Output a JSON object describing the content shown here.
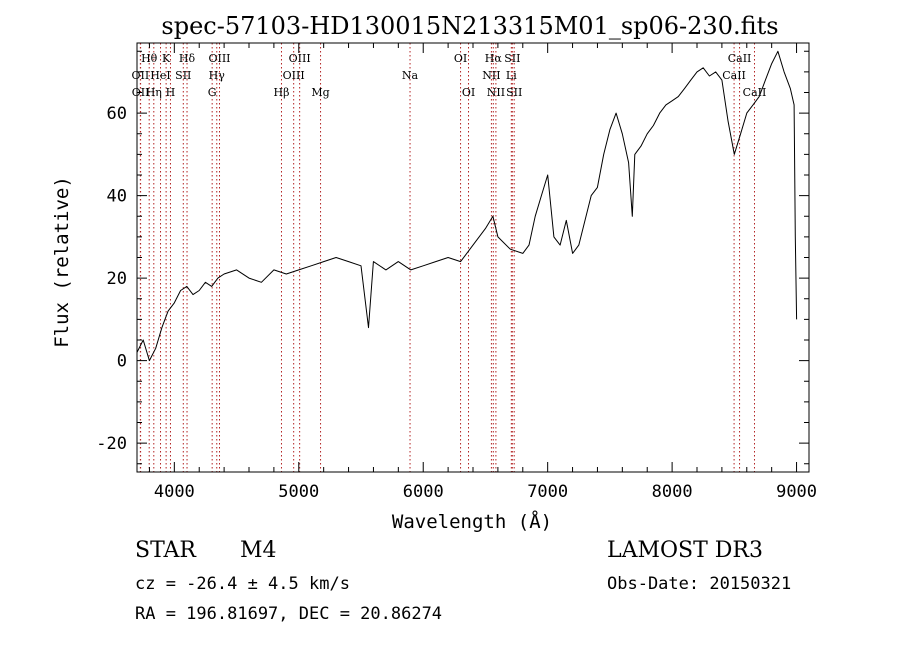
{
  "chart_data": {
    "type": "line",
    "title": "spec-57103-HD130015N213315M01_sp06-230.fits",
    "xlabel": "Wavelength (Å)",
    "ylabel": "Flux (relative)",
    "xlim": [
      3700,
      9100
    ],
    "ylim": [
      -27,
      77
    ],
    "xticks": [
      4000,
      5000,
      6000,
      7000,
      8000,
      9000
    ],
    "yticks": [
      -20,
      0,
      20,
      40,
      60
    ],
    "series": [
      {
        "name": "spectrum",
        "x": [
          3700,
          3750,
          3800,
          3850,
          3900,
          3950,
          4000,
          4050,
          4100,
          4150,
          4200,
          4250,
          4300,
          4350,
          4400,
          4500,
          4600,
          4700,
          4800,
          4900,
          5000,
          5100,
          5200,
          5300,
          5400,
          5500,
          5560,
          5600,
          5700,
          5800,
          5900,
          6000,
          6100,
          6200,
          6300,
          6400,
          6500,
          6560,
          6600,
          6700,
          6800,
          6850,
          6900,
          6950,
          7000,
          7050,
          7100,
          7150,
          7200,
          7250,
          7300,
          7350,
          7400,
          7450,
          7500,
          7550,
          7600,
          7650,
          7680,
          7700,
          7750,
          7800,
          7850,
          7900,
          7950,
          8000,
          8050,
          8100,
          8150,
          8200,
          8250,
          8300,
          8350,
          8400,
          8450,
          8500,
          8550,
          8600,
          8650,
          8700,
          8750,
          8800,
          8850,
          8900,
          8950,
          8980,
          8990,
          9000
        ],
        "y": [
          2,
          5,
          0,
          3,
          8,
          12,
          14,
          17,
          18,
          16,
          17,
          19,
          18,
          20,
          21,
          22,
          20,
          19,
          22,
          21,
          22,
          23,
          24,
          25,
          24,
          23,
          8,
          24,
          22,
          24,
          22,
          23,
          24,
          25,
          24,
          28,
          32,
          35,
          30,
          27,
          26,
          28,
          35,
          40,
          45,
          30,
          28,
          34,
          26,
          28,
          34,
          40,
          42,
          50,
          56,
          60,
          55,
          48,
          35,
          50,
          52,
          55,
          57,
          60,
          62,
          63,
          64,
          66,
          68,
          70,
          71,
          69,
          70,
          68,
          58,
          50,
          55,
          60,
          62,
          64,
          68,
          72,
          75,
          70,
          66,
          62,
          30,
          10
        ]
      }
    ],
    "line_markers": [
      {
        "label": "Hθ",
        "wavelength": 3798,
        "row": 1
      },
      {
        "label": "OII",
        "wavelength": 3727,
        "row": 2
      },
      {
        "label": "OII",
        "wavelength": 3729,
        "row": 3
      },
      {
        "label": "Hη",
        "wavelength": 3835,
        "row": 3
      },
      {
        "label": "K",
        "wavelength": 3934,
        "row": 1
      },
      {
        "label": "HeI",
        "wavelength": 3889,
        "row": 2
      },
      {
        "label": "H",
        "wavelength": 3969,
        "row": 3
      },
      {
        "label": "SII",
        "wavelength": 4072,
        "row": 2
      },
      {
        "label": "Hδ",
        "wavelength": 4102,
        "row": 1
      },
      {
        "label": "OIII",
        "wavelength": 4363,
        "row": 1
      },
      {
        "label": "Hγ",
        "wavelength": 4341,
        "row": 2
      },
      {
        "label": "G",
        "wavelength": 4304,
        "row": 3
      },
      {
        "label": "Hβ",
        "wavelength": 4861,
        "row": 3
      },
      {
        "label": "OIII",
        "wavelength": 5007,
        "row": 1
      },
      {
        "label": "OIII",
        "wavelength": 4959,
        "row": 2
      },
      {
        "label": "Mg",
        "wavelength": 5175,
        "row": 3
      },
      {
        "label": "Na",
        "wavelength": 5894,
        "row": 2
      },
      {
        "label": "OI",
        "wavelength": 6300,
        "row": 1
      },
      {
        "label": "OI",
        "wavelength": 6364,
        "row": 3
      },
      {
        "label": "Hα",
        "wavelength": 6563,
        "row": 1
      },
      {
        "label": "SII",
        "wavelength": 6716,
        "row": 1
      },
      {
        "label": "NII",
        "wavelength": 6548,
        "row": 2
      },
      {
        "label": "NII",
        "wavelength": 6584,
        "row": 3
      },
      {
        "label": "Li",
        "wavelength": 6708,
        "row": 2
      },
      {
        "label": "SII",
        "wavelength": 6731,
        "row": 3
      },
      {
        "label": "CaII",
        "wavelength": 8542,
        "row": 1
      },
      {
        "label": "CaII",
        "wavelength": 8498,
        "row": 2
      },
      {
        "label": "CaII",
        "wavelength": 8662,
        "row": 3
      }
    ]
  },
  "info": {
    "object_class": "STAR",
    "subclass": "M4",
    "survey": "LAMOST DR3",
    "cz": "cz = -26.4 ± 4.5 km/s",
    "obs_date": "Obs-Date: 20150321",
    "coords": "RA = 196.81697, DEC =  20.86274"
  }
}
